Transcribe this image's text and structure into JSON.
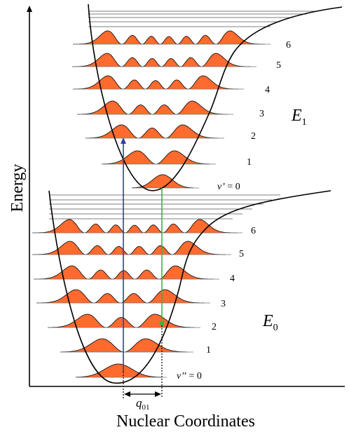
{
  "axes": {
    "y_label": "Energy",
    "x_label": "Nuclear Coordinates"
  },
  "displacement_label": {
    "symbol": "q",
    "subscript": "01"
  },
  "upper_state": {
    "label_main": "E",
    "label_sub": "1",
    "zero_prefix": "v’",
    "zero_suffix": " = 0",
    "levels": [
      {
        "label": "6"
      },
      {
        "label": "5"
      },
      {
        "label": "4"
      },
      {
        "label": "3"
      },
      {
        "label": "2"
      },
      {
        "label": "1"
      }
    ]
  },
  "lower_state": {
    "label_main": "E",
    "label_sub": "0",
    "zero_prefix": "v’’",
    "zero_suffix": " = 0",
    "levels": [
      {
        "label": "6"
      },
      {
        "label": "5"
      },
      {
        "label": "4"
      },
      {
        "label": "3"
      },
      {
        "label": "2"
      },
      {
        "label": "1"
      }
    ]
  },
  "colors": {
    "wavefunction_fill": "#ff6a2e",
    "absorption_arrow": "#2b3fa6",
    "emission_arrow": "#3bb33b",
    "curve": "#000000"
  }
}
